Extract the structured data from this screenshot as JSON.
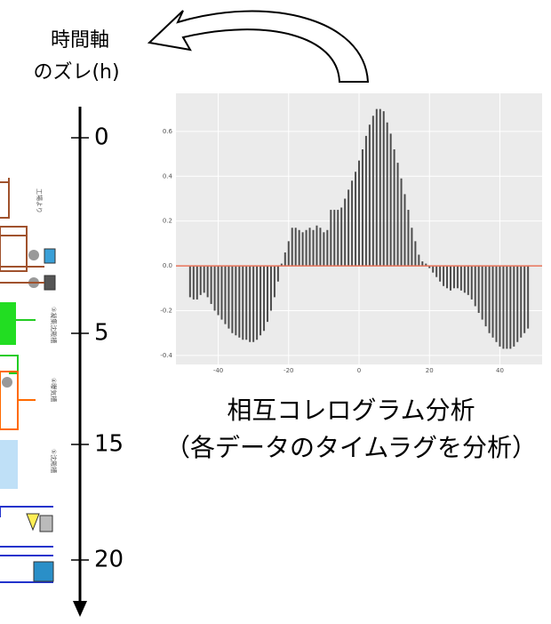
{
  "chart_data": {
    "type": "bar",
    "color": "#4d4d4d",
    "zero_line_color": "#e8735a",
    "grid": true,
    "x": [
      -48,
      -47,
      -46,
      -45,
      -44,
      -43,
      -42,
      -41,
      -40,
      -39,
      -38,
      -37,
      -36,
      -35,
      -34,
      -33,
      -32,
      -31,
      -30,
      -29,
      -28,
      -27,
      -26,
      -25,
      -24,
      -23,
      -22,
      -21,
      -20,
      -19,
      -18,
      -17,
      -16,
      -15,
      -14,
      -13,
      -12,
      -11,
      -10,
      -9,
      -8,
      -7,
      -6,
      -5,
      -4,
      -3,
      -2,
      -1,
      0,
      1,
      2,
      3,
      4,
      5,
      6,
      7,
      8,
      9,
      10,
      11,
      12,
      13,
      14,
      15,
      16,
      17,
      18,
      19,
      20,
      21,
      22,
      23,
      24,
      25,
      26,
      27,
      28,
      29,
      30,
      31,
      32,
      33,
      34,
      35,
      36,
      37,
      38,
      39,
      40,
      41,
      42,
      43,
      44,
      45,
      46,
      47,
      48
    ],
    "values": [
      -0.14,
      -0.15,
      -0.15,
      -0.13,
      -0.12,
      -0.14,
      -0.17,
      -0.2,
      -0.22,
      -0.24,
      -0.26,
      -0.28,
      -0.3,
      -0.31,
      -0.32,
      -0.33,
      -0.33,
      -0.34,
      -0.34,
      -0.33,
      -0.31,
      -0.29,
      -0.25,
      -0.2,
      -0.14,
      -0.07,
      0.01,
      0.06,
      0.11,
      0.17,
      0.17,
      0.16,
      0.15,
      0.16,
      0.17,
      0.16,
      0.18,
      0.17,
      0.15,
      0.16,
      0.25,
      0.25,
      0.25,
      0.26,
      0.3,
      0.34,
      0.38,
      0.42,
      0.47,
      0.52,
      0.58,
      0.63,
      0.67,
      0.7,
      0.7,
      0.69,
      0.64,
      0.59,
      0.52,
      0.46,
      0.39,
      0.32,
      0.25,
      0.17,
      0.11,
      0.05,
      0.02,
      0.01,
      -0.01,
      -0.03,
      -0.05,
      -0.07,
      -0.09,
      -0.1,
      -0.11,
      -0.1,
      -0.1,
      -0.11,
      -0.12,
      -0.13,
      -0.15,
      -0.18,
      -0.21,
      -0.24,
      -0.27,
      -0.3,
      -0.32,
      -0.34,
      -0.36,
      -0.37,
      -0.37,
      -0.37,
      -0.36,
      -0.34,
      -0.32,
      -0.3,
      -0.28
    ],
    "xlim": [
      -52,
      52
    ],
    "xticks": [
      -40,
      -20,
      0,
      20,
      40
    ],
    "ylim": [
      -0.44,
      0.77
    ],
    "yticks": [
      -0.4,
      -0.2,
      {
        "value": 0,
        "label": "0.0"
      },
      0.2,
      0.4,
      0.6
    ],
    "caption": "相互コレログラム分析",
    "subcaption": "（各データのタイムラグを分析）"
  },
  "time_axis": {
    "title_lines": [
      "時間軸",
      "のズレ(h)"
    ],
    "labels": [
      "0",
      "5",
      "15",
      "20"
    ]
  },
  "diagram": {
    "labels": [
      "工場より",
      "③凝集沈殿槽",
      "④曝気槽",
      "⑤沈殿槽"
    ]
  }
}
